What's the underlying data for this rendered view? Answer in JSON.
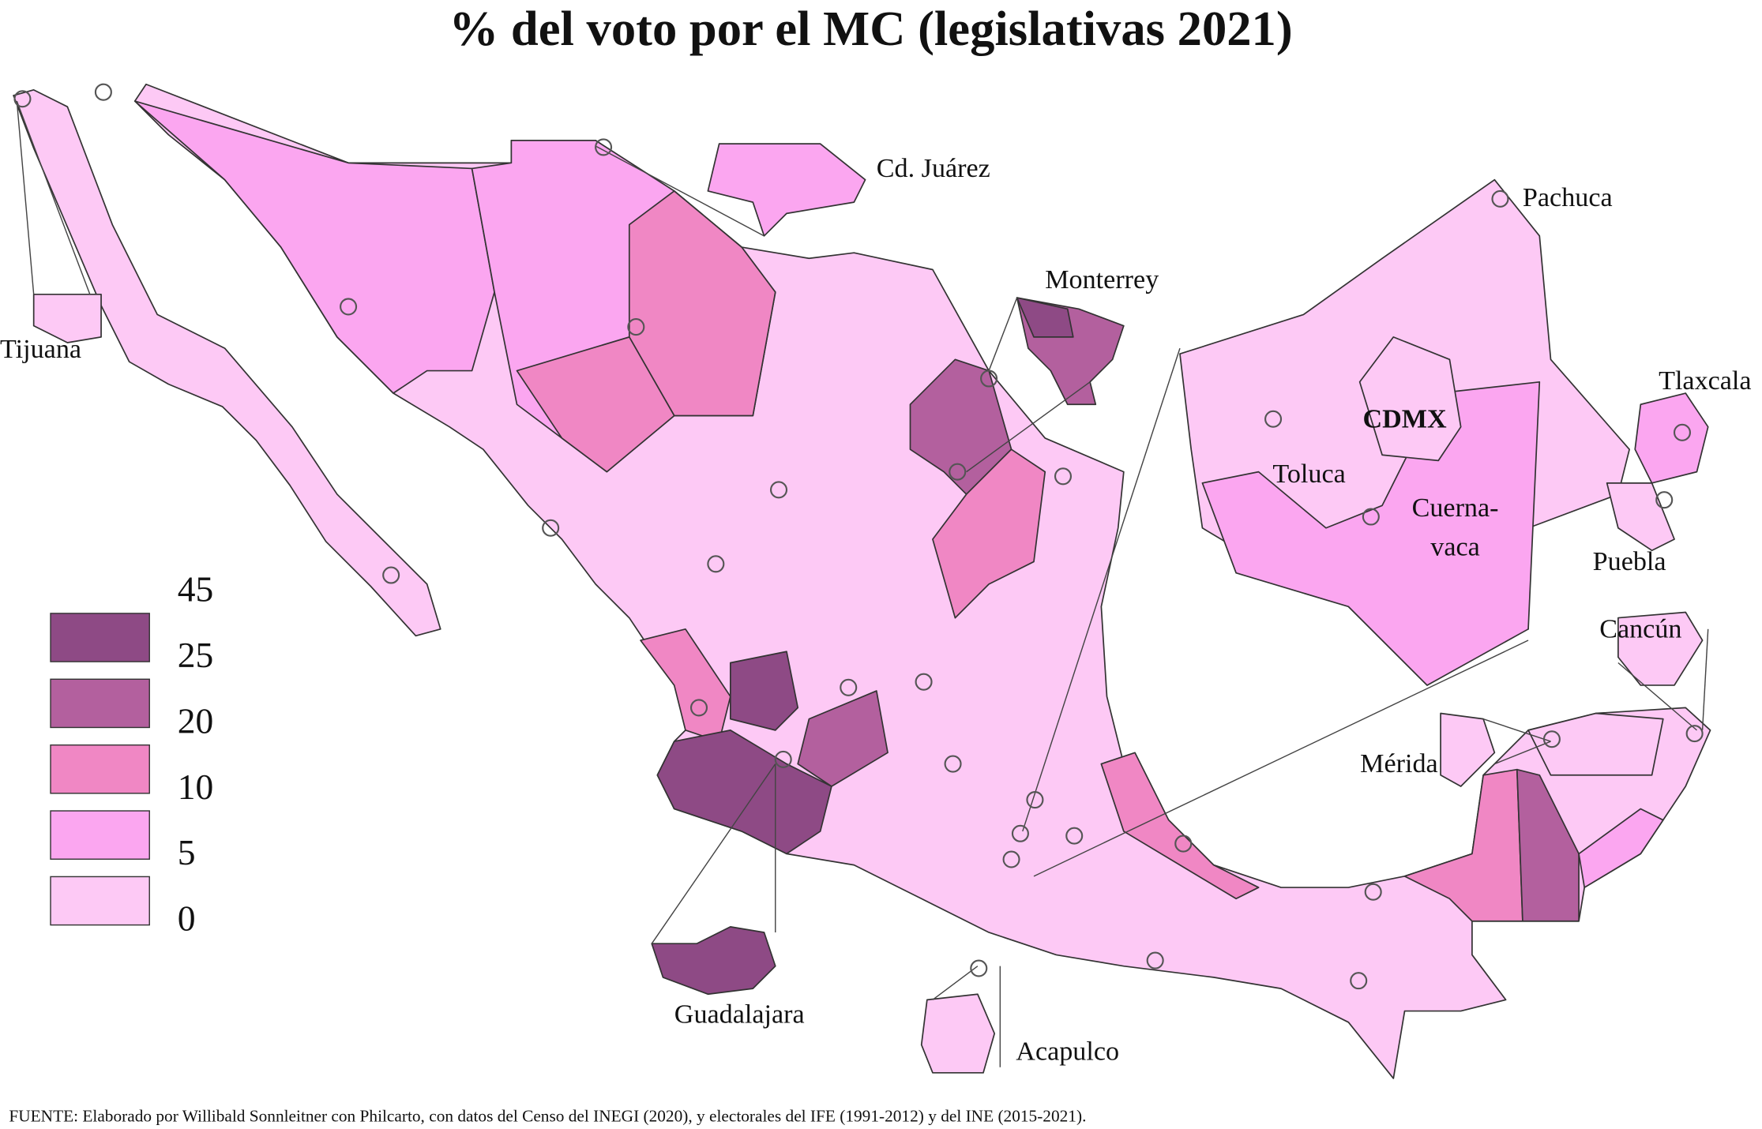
{
  "title": "% del voto por el MC (legislativas 2021)",
  "legend": {
    "breaks": [
      45,
      25,
      20,
      10,
      5,
      0
    ],
    "colors": [
      "#8e4a85",
      "#b3609e",
      "#f087c4",
      "#fba6f0",
      "#fdc9f5"
    ]
  },
  "map_labels": [
    "Cd. Juárez",
    "Pachuca",
    "Monterrey",
    "Tijuana",
    "Tlaxcala",
    "CDMX",
    "Toluca",
    "Cuerna-",
    "vaca",
    "Puebla",
    "Cancún",
    "Mérida",
    "Guadalajara",
    "Acapulco"
  ],
  "source": "FUENTE: Elaborado por Willibald Sonnleitner con Philcarto, con datos del Censo del INEGI (2020), y electorales del IFE (1991-2012) y del INE (2015-2021)."
}
